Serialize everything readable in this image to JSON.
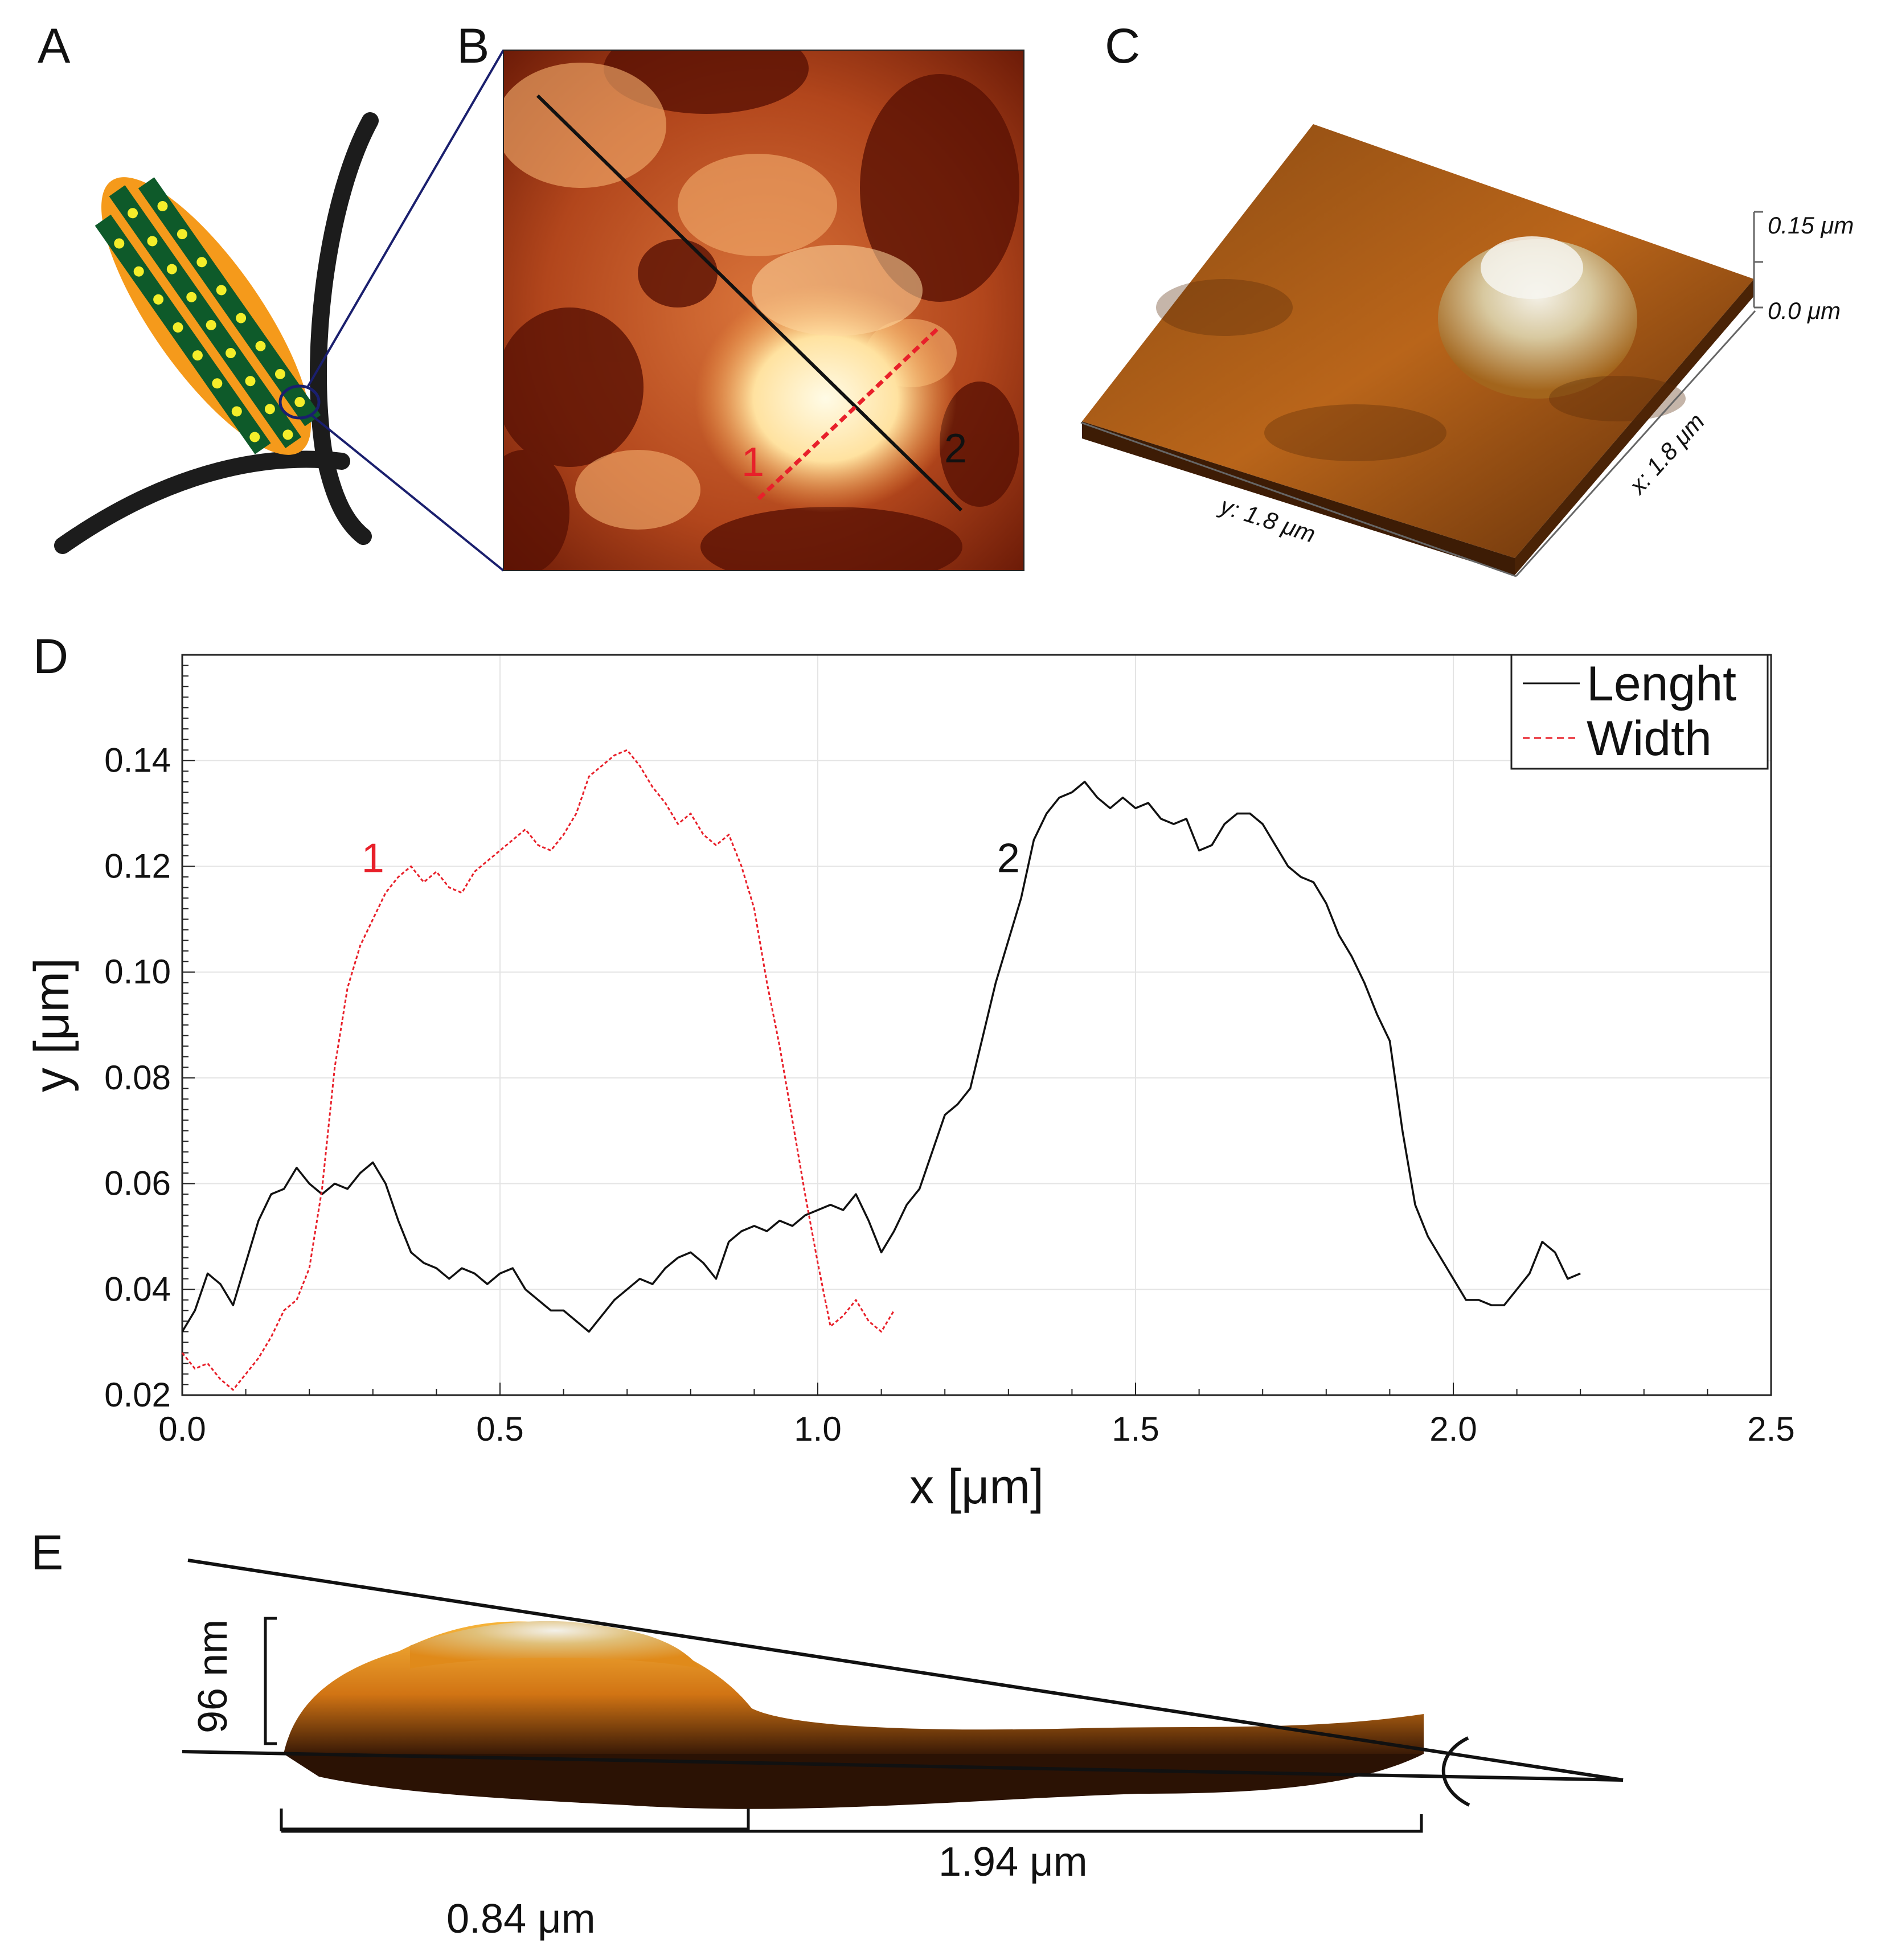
{
  "panels": {
    "a": "A",
    "b": "B",
    "c": "C",
    "d": "D",
    "e": "E"
  },
  "panel_b": {
    "line1_label": "1",
    "line2_label": "2"
  },
  "panel_c": {
    "z_top": "0.15 μm",
    "z_bottom": "0.0 μm",
    "x_label": "x: 1.8 μm",
    "y_label": "y: 1.8 μm"
  },
  "panel_e": {
    "height_label": "96 nm",
    "width_label": "0.84 μm",
    "length_label": "1.94 μm"
  },
  "colors": {
    "length": "#111111",
    "width": "#e8202a",
    "leaf_orange": "#f59a1b",
    "leaf_green": "#0e5a2a",
    "dot_yellow": "#f4ee2a",
    "zoom_lines": "#1a1f6e"
  },
  "chart_data": {
    "type": "line",
    "xlabel": "x [μm]",
    "ylabel": "y [μm]",
    "xlim": [
      0.0,
      2.5
    ],
    "ylim": [
      0.02,
      0.16
    ],
    "xticks": [
      "0.0",
      "0.5",
      "1.0",
      "1.5",
      "2.0",
      "2.5"
    ],
    "yticks": [
      "0.02",
      "0.04",
      "0.06",
      "0.08",
      "0.10",
      "0.12",
      "0.14"
    ],
    "grid": true,
    "legend_position": "top-right",
    "annotations": [
      {
        "text": "1",
        "x": 0.3,
        "y": 0.12,
        "color": "#e8202a"
      },
      {
        "text": "2",
        "x": 1.3,
        "y": 0.12,
        "color": "#111111"
      }
    ],
    "series": [
      {
        "name": "Lenght",
        "style": "solid",
        "color": "#111111",
        "x": [
          0.0,
          0.02,
          0.04,
          0.06,
          0.08,
          0.1,
          0.12,
          0.14,
          0.16,
          0.18,
          0.2,
          0.22,
          0.24,
          0.26,
          0.28,
          0.3,
          0.32,
          0.34,
          0.36,
          0.38,
          0.4,
          0.42,
          0.44,
          0.46,
          0.48,
          0.5,
          0.52,
          0.54,
          0.56,
          0.58,
          0.6,
          0.62,
          0.64,
          0.66,
          0.68,
          0.7,
          0.72,
          0.74,
          0.76,
          0.78,
          0.8,
          0.82,
          0.84,
          0.86,
          0.88,
          0.9,
          0.92,
          0.94,
          0.96,
          0.98,
          1.0,
          1.02,
          1.04,
          1.06,
          1.08,
          1.1,
          1.12,
          1.14,
          1.16,
          1.18,
          1.2,
          1.22,
          1.24,
          1.26,
          1.28,
          1.3,
          1.32,
          1.34,
          1.36,
          1.38,
          1.4,
          1.42,
          1.44,
          1.46,
          1.48,
          1.5,
          1.52,
          1.54,
          1.56,
          1.58,
          1.6,
          1.62,
          1.64,
          1.66,
          1.68,
          1.7,
          1.72,
          1.74,
          1.76,
          1.78,
          1.8,
          1.82,
          1.84,
          1.86,
          1.88,
          1.9,
          1.92,
          1.94,
          1.96,
          1.98,
          2.0,
          2.02,
          2.04,
          2.06,
          2.08,
          2.1,
          2.12,
          2.14,
          2.16,
          2.18,
          2.2
        ],
        "y": [
          0.032,
          0.036,
          0.043,
          0.041,
          0.037,
          0.045,
          0.053,
          0.058,
          0.059,
          0.063,
          0.06,
          0.058,
          0.06,
          0.059,
          0.062,
          0.064,
          0.06,
          0.053,
          0.047,
          0.045,
          0.044,
          0.042,
          0.044,
          0.043,
          0.041,
          0.043,
          0.044,
          0.04,
          0.038,
          0.036,
          0.036,
          0.034,
          0.032,
          0.035,
          0.038,
          0.04,
          0.042,
          0.041,
          0.044,
          0.046,
          0.047,
          0.045,
          0.042,
          0.049,
          0.051,
          0.052,
          0.051,
          0.053,
          0.052,
          0.054,
          0.055,
          0.056,
          0.055,
          0.058,
          0.053,
          0.047,
          0.051,
          0.056,
          0.059,
          0.066,
          0.073,
          0.075,
          0.078,
          0.088,
          0.098,
          0.106,
          0.114,
          0.125,
          0.13,
          0.133,
          0.134,
          0.136,
          0.133,
          0.131,
          0.133,
          0.131,
          0.132,
          0.129,
          0.128,
          0.129,
          0.123,
          0.124,
          0.128,
          0.13,
          0.13,
          0.128,
          0.124,
          0.12,
          0.118,
          0.117,
          0.113,
          0.107,
          0.103,
          0.098,
          0.092,
          0.087,
          0.07,
          0.056,
          0.05,
          0.046,
          0.042,
          0.038,
          0.038,
          0.037,
          0.037,
          0.04,
          0.043,
          0.049,
          0.047,
          0.042,
          0.043
        ]
      },
      {
        "name": "Width",
        "style": "dashed",
        "color": "#e8202a",
        "x": [
          0.0,
          0.02,
          0.04,
          0.06,
          0.08,
          0.1,
          0.12,
          0.14,
          0.16,
          0.18,
          0.2,
          0.22,
          0.24,
          0.26,
          0.28,
          0.3,
          0.32,
          0.34,
          0.36,
          0.38,
          0.4,
          0.42,
          0.44,
          0.46,
          0.48,
          0.5,
          0.52,
          0.54,
          0.56,
          0.58,
          0.6,
          0.62,
          0.64,
          0.66,
          0.68,
          0.7,
          0.72,
          0.74,
          0.76,
          0.78,
          0.8,
          0.82,
          0.84,
          0.86,
          0.88,
          0.9,
          0.92,
          0.94,
          0.96,
          0.98,
          1.0,
          1.02,
          1.04,
          1.06,
          1.08,
          1.1,
          1.12
        ],
        "y": [
          0.028,
          0.025,
          0.026,
          0.023,
          0.021,
          0.024,
          0.027,
          0.031,
          0.036,
          0.038,
          0.044,
          0.059,
          0.082,
          0.097,
          0.105,
          0.11,
          0.115,
          0.118,
          0.12,
          0.117,
          0.119,
          0.116,
          0.115,
          0.119,
          0.121,
          0.123,
          0.125,
          0.127,
          0.124,
          0.123,
          0.126,
          0.13,
          0.137,
          0.139,
          0.141,
          0.142,
          0.139,
          0.135,
          0.132,
          0.128,
          0.13,
          0.126,
          0.124,
          0.126,
          0.12,
          0.112,
          0.098,
          0.086,
          0.072,
          0.058,
          0.045,
          0.033,
          0.035,
          0.038,
          0.034,
          0.032,
          0.036
        ]
      }
    ]
  }
}
